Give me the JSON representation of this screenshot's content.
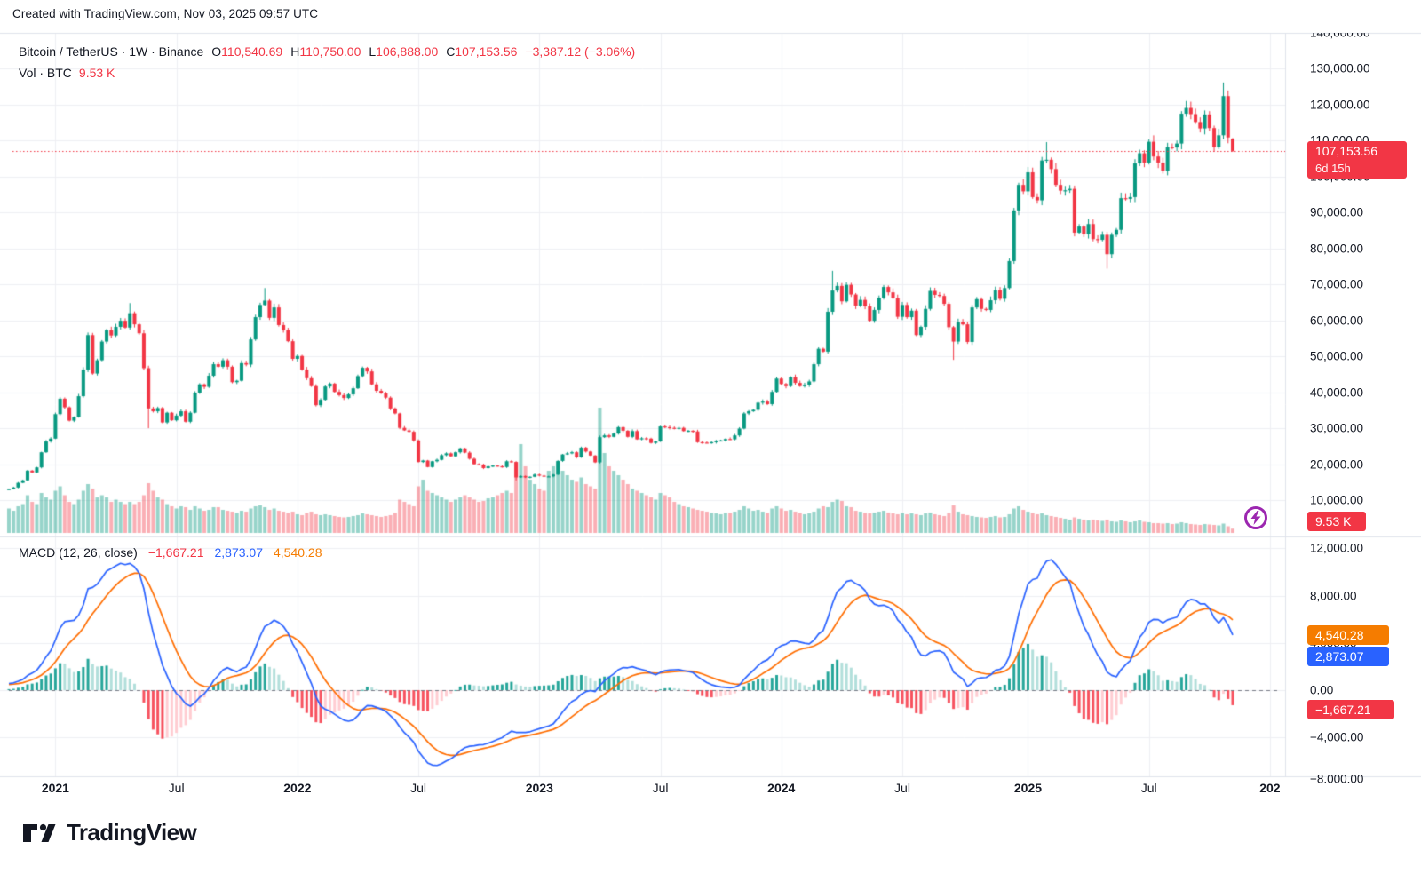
{
  "header": {
    "watermark": "Created with TradingView.com, Nov 03, 2025 09:57 UTC"
  },
  "legend": {
    "symbol_title": "Bitcoin / TetherUS · 1W · Binance",
    "o_label": "O",
    "open": "110,540.69",
    "h_label": "H",
    "high": "110,750.00",
    "l_label": "L",
    "low": "106,888.00",
    "c_label": "C",
    "close": "107,153.56",
    "change": "−3,387.12 (−3.06%)",
    "vol_label": "Vol · BTC",
    "vol_value": "9.53 K"
  },
  "macd_legend": {
    "title": "MACD (12, 26, close)",
    "hist_value": "−1,667.21",
    "macd_value": "2,873.07",
    "signal_value": "4,540.28"
  },
  "price_axis": {
    "ticks": [
      {
        "label": "140,000.00",
        "value": 140
      },
      {
        "label": "130,000.00",
        "value": 130
      },
      {
        "label": "120,000.00",
        "value": 120
      },
      {
        "label": "110,000.00",
        "value": 110
      },
      {
        "label": "100,000.00",
        "value": 100
      },
      {
        "label": "90,000.00",
        "value": 90
      },
      {
        "label": "80,000.00",
        "value": 80
      },
      {
        "label": "70,000.00",
        "value": 70
      },
      {
        "label": "60,000.00",
        "value": 60
      },
      {
        "label": "50,000.00",
        "value": 50
      },
      {
        "label": "40,000.00",
        "value": 40
      },
      {
        "label": "30,000.00",
        "value": 30
      },
      {
        "label": "20,000.00",
        "value": 20
      },
      {
        "label": "10,000.00",
        "value": 10
      }
    ],
    "current_price_label": "107,153.56",
    "countdown": "6d 15h",
    "volume_label": "9.53 K"
  },
  "macd_axis": {
    "ticks": [
      {
        "label": "12,000.00",
        "value": 12
      },
      {
        "label": "8,000.00",
        "value": 8
      },
      {
        "label": "4,000.00",
        "value": 4
      },
      {
        "label": "0.00",
        "value": 0
      },
      {
        "label": "−4,000.00",
        "value": -4
      },
      {
        "label": "−8,000.00",
        "value": -8
      }
    ],
    "signal_label": "4,540.28",
    "macd_label": "2,873.07",
    "hist_label": "−1,667.21"
  },
  "time_axis": {
    "ticks": [
      {
        "label": "2021",
        "week": 10,
        "bold": true
      },
      {
        "label": "Jul",
        "week": 36,
        "bold": false
      },
      {
        "label": "2022",
        "week": 62,
        "bold": true
      },
      {
        "label": "Jul",
        "week": 88,
        "bold": false
      },
      {
        "label": "2023",
        "week": 114,
        "bold": true
      },
      {
        "label": "Jul",
        "week": 140,
        "bold": false
      },
      {
        "label": "2024",
        "week": 166,
        "bold": true
      },
      {
        "label": "Jul",
        "week": 192,
        "bold": false
      },
      {
        "label": "2025",
        "week": 219,
        "bold": true
      },
      {
        "label": "Jul",
        "week": 245,
        "bold": false
      },
      {
        "label": "202",
        "week": 271,
        "bold": true
      }
    ]
  },
  "logo": {
    "text": "TradingView"
  },
  "colors": {
    "up": "#089981",
    "down": "#f23645",
    "vol_up": "rgba(8,153,129,0.42)",
    "vol_down": "rgba(242,54,69,0.40)",
    "macd_line": "#2962ff",
    "signal_line": "#ff6d00",
    "hist_up_grow": "#26a69a",
    "hist_up_fall": "#b2dfdb",
    "hist_dn_grow": "#ffcdd2",
    "hist_dn_fall": "#f7525f",
    "grid": "#eef0f3",
    "border": "#e0e3eb",
    "zero_dash": "#787b86",
    "accent_red": "#f23645",
    "accent_blue": "#2962ff",
    "accent_orange": "#f57c00",
    "bolt_purple": "#9c27b0",
    "text": "#131722"
  },
  "chart_data": {
    "type": "candlestick",
    "symbol_description": "Bitcoin / TetherUS",
    "exchange": "Binance",
    "interval": "1W",
    "current_price": 107153.56,
    "price_axis_range_usd": [
      10000,
      140000
    ],
    "macd_axis_range": [
      -8000,
      12000
    ],
    "macd_params": {
      "fast": 12,
      "slow": 26,
      "signal": 9
    },
    "macd_current": {
      "histogram": -1667.21,
      "macd": 2873.07,
      "signal": 4540.28
    },
    "last_candle_usd": {
      "open": 110540.69,
      "high": 110750.0,
      "low": 106888.0,
      "close": 107153.56
    },
    "volume_current_btc": "9.53 K",
    "weekly_closes_usd_k": [
      13.1,
      13.5,
      14.8,
      15.5,
      18.2,
      17.7,
      19.1,
      23.3,
      26.3,
      27.1,
      33.9,
      38.2,
      35.8,
      32.1,
      33.1,
      38.9,
      46.3,
      55.9,
      45.2,
      48.9,
      54.1,
      57.3,
      55.8,
      58.2,
      59.9,
      58.0,
      62.0,
      58.9,
      56.4,
      46.7,
      35.5,
      34.7,
      35.6,
      31.6,
      34.3,
      32.2,
      33.5,
      34.7,
      31.8,
      34.3,
      39.9,
      42.2,
      41.5,
      44.6,
      47.8,
      47.1,
      48.9,
      47.1,
      42.8,
      43.2,
      48.1,
      47.7,
      54.7,
      60.9,
      64.3,
      65.5,
      60.7,
      63.6,
      58.7,
      57.3,
      54.2,
      49.3,
      50.1,
      46.3,
      43.9,
      41.7,
      36.4,
      37.9,
      41.6,
      42.4,
      40.1,
      39.2,
      38.4,
      39.4,
      41.1,
      44.5,
      46.8,
      45.8,
      42.2,
      40.4,
      39.7,
      38.5,
      35.5,
      34.1,
      30.1,
      29.4,
      29.0,
      26.6,
      20.6,
      21.0,
      19.2,
      20.8,
      21.2,
      22.5,
      23.0,
      22.2,
      23.3,
      24.4,
      23.2,
      21.5,
      20.0,
      19.9,
      18.9,
      19.4,
      19.6,
      19.4,
      19.2,
      20.8,
      20.6,
      16.3,
      16.7,
      16.3,
      16.5,
      17.1,
      16.8,
      16.6,
      16.6,
      17.1,
      20.9,
      22.7,
      23.0,
      23.3,
      21.9,
      24.6,
      23.5,
      22.4,
      20.5,
      27.5,
      28.0,
      27.6,
      28.5,
      30.3,
      29.3,
      27.6,
      29.2,
      26.9,
      27.2,
      27.1,
      25.9,
      26.3,
      30.5,
      30.3,
      30.1,
      29.9,
      30.1,
      29.2,
      29.3,
      29.1,
      26.1,
      26.0,
      25.9,
      26.1,
      26.5,
      26.6,
      27.0,
      26.9,
      28.0,
      29.9,
      34.1,
      34.7,
      35.1,
      37.1,
      37.4,
      36.7,
      40.1,
      43.8,
      42.3,
      41.7,
      44.2,
      42.6,
      41.7,
      42.1,
      43.0,
      47.8,
      52.1,
      51.3,
      62.4,
      68.3,
      69.6,
      65.3,
      69.9,
      67.2,
      64.1,
      65.7,
      63.9,
      59.9,
      62.9,
      66.3,
      69.3,
      67.8,
      66.2,
      61.0,
      64.3,
      60.9,
      62.7,
      55.9,
      58.2,
      63.2,
      68.2,
      67.1,
      66.8,
      64.6,
      58.1,
      54.1,
      59.5,
      58.9,
      54.0,
      63.6,
      65.9,
      63.2,
      62.9,
      65.6,
      68.4,
      66.0,
      69.0,
      76.5,
      90.6,
      97.7,
      95.9,
      101.2,
      94.3,
      93.4,
      104.5,
      104.7,
      102.1,
      97.7,
      96.1,
      96.2,
      96.6,
      84.4,
      86.1,
      84.0,
      86.8,
      82.6,
      82.4,
      83.8,
      78.4,
      83.8,
      85.2,
      94.0,
      93.8,
      94.3,
      103.7,
      106.5,
      103.9,
      109.7,
      105.6,
      103.9,
      101.6,
      108.2,
      108.1,
      109.2,
      117.5,
      119.1,
      117.4,
      115.2,
      113.4,
      117.3,
      113.5,
      108.2,
      111.5,
      122.4,
      110.9,
      107.2
    ],
    "weekly_volumes_btc_k": [
      55,
      50,
      60,
      65,
      85,
      70,
      65,
      90,
      80,
      75,
      95,
      105,
      85,
      70,
      65,
      75,
      95,
      110,
      100,
      80,
      85,
      80,
      70,
      75,
      70,
      65,
      70,
      65,
      70,
      85,
      112,
      95,
      80,
      75,
      65,
      60,
      55,
      60,
      58,
      52,
      60,
      55,
      50,
      52,
      58,
      58,
      52,
      50,
      48,
      45,
      50,
      48,
      55,
      60,
      62,
      58,
      52,
      55,
      50,
      48,
      45,
      48,
      42,
      40,
      45,
      48,
      42,
      40,
      42,
      40,
      38,
      36,
      35,
      36,
      38,
      40,
      44,
      42,
      40,
      38,
      36,
      38,
      40,
      45,
      75,
      70,
      65,
      60,
      105,
      120,
      95,
      90,
      85,
      80,
      75,
      70,
      75,
      80,
      85,
      80,
      75,
      70,
      72,
      78,
      80,
      85,
      90,
      95,
      90,
      160,
      200,
      150,
      120,
      110,
      100,
      95,
      140,
      150,
      160,
      140,
      130,
      120,
      115,
      125,
      110,
      105,
      100,
      282,
      180,
      150,
      140,
      130,
      120,
      110,
      100,
      95,
      90,
      85,
      80,
      75,
      90,
      85,
      80,
      70,
      65,
      60,
      58,
      55,
      52,
      50,
      48,
      45,
      44,
      42,
      45,
      45,
      48,
      52,
      60,
      55,
      50,
      52,
      48,
      45,
      55,
      60,
      55,
      50,
      52,
      48,
      45,
      42,
      44,
      48,
      55,
      60,
      58,
      70,
      75,
      72,
      60,
      58,
      50,
      48,
      45,
      44,
      46,
      48,
      50,
      46,
      44,
      42,
      45,
      42,
      44,
      42,
      40,
      44,
      46,
      42,
      40,
      38,
      45,
      62,
      48,
      42,
      40,
      38,
      36,
      35,
      34,
      36,
      38,
      35,
      36,
      42,
      55,
      60,
      52,
      48,
      45,
      42,
      44,
      40,
      38,
      36,
      34,
      32,
      30,
      35,
      32,
      30,
      28,
      30,
      28,
      27,
      30,
      26,
      25,
      28,
      26,
      24,
      26,
      28,
      25,
      24,
      22,
      22,
      21,
      22,
      20,
      21,
      24,
      22,
      20,
      19,
      18,
      20,
      19,
      18,
      17,
      21,
      15,
      9.53
    ],
    "wick_overrides_usd_k": {
      "26": [
        64.8,
        null
      ],
      "30": [
        null,
        30.0
      ],
      "55": [
        69.0,
        null
      ],
      "109": [
        null,
        15.5
      ],
      "177": [
        73.8,
        null
      ],
      "203": [
        null,
        49.0
      ],
      "223": [
        109.6,
        null
      ],
      "236": [
        null,
        74.4
      ],
      "261": [
        126.2,
        null
      ]
    }
  }
}
